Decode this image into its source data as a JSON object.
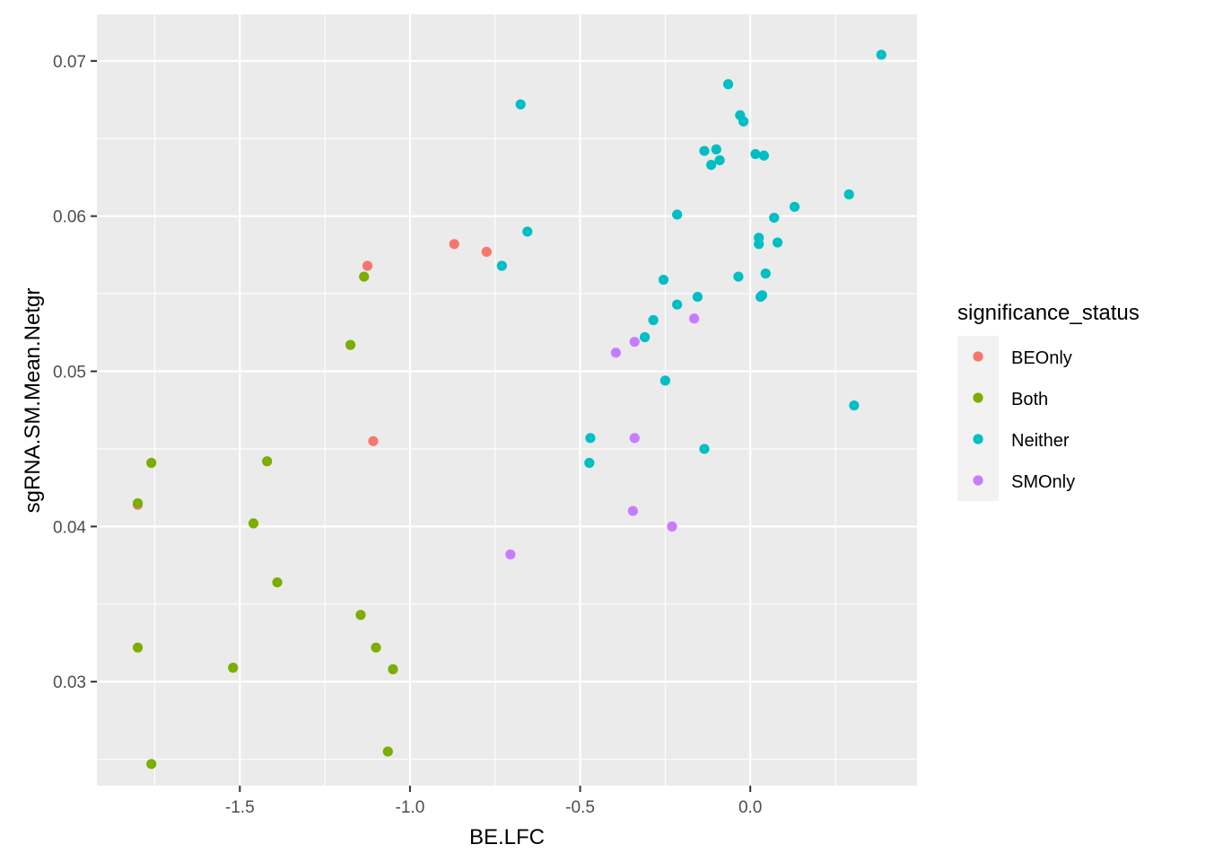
{
  "chart_data": {
    "type": "scatter",
    "title": "",
    "xlabel": "BE.LFC",
    "ylabel": "sgRNA.SM.Mean.Netgr",
    "xlim": [
      -1.92,
      0.49
    ],
    "ylim": [
      0.0233,
      0.073
    ],
    "x_ticks": [
      -1.5,
      -1.0,
      -0.5,
      0.0
    ],
    "x_tick_labels": [
      "-1.5",
      "-1.0",
      "-0.5",
      "0.0"
    ],
    "y_ticks": [
      0.03,
      0.04,
      0.05,
      0.06,
      0.07
    ],
    "y_tick_labels": [
      "0.03",
      "0.04",
      "0.05",
      "0.06",
      "0.07"
    ],
    "grid": true,
    "legend": {
      "title": "significance_status",
      "placement": "right",
      "entries": [
        {
          "label": "BEOnly",
          "color": "#F8766D"
        },
        {
          "label": "Both",
          "color": "#7CAE00"
        },
        {
          "label": "Neither",
          "color": "#00BFC4"
        },
        {
          "label": "SMOnly",
          "color": "#C77CFF"
        }
      ]
    },
    "series": [
      {
        "name": "BEOnly",
        "color": "#F8766D",
        "points": [
          [
            -1.8,
            0.0414
          ],
          [
            -1.125,
            0.0568
          ],
          [
            -1.108,
            0.0455
          ],
          [
            -0.87,
            0.0582
          ],
          [
            -0.775,
            0.0577
          ]
        ]
      },
      {
        "name": "Both",
        "color": "#7CAE00",
        "points": [
          [
            -1.8,
            0.0415
          ],
          [
            -1.76,
            0.0441
          ],
          [
            -1.8,
            0.0322
          ],
          [
            -1.76,
            0.0247
          ],
          [
            -1.52,
            0.0309
          ],
          [
            -1.46,
            0.0402
          ],
          [
            -1.42,
            0.0442
          ],
          [
            -1.39,
            0.0364
          ],
          [
            -1.175,
            0.0517
          ],
          [
            -1.135,
            0.0561
          ],
          [
            -1.145,
            0.0343
          ],
          [
            -1.1,
            0.0322
          ],
          [
            -1.05,
            0.0308
          ],
          [
            -1.065,
            0.0255
          ]
        ]
      },
      {
        "name": "Neither",
        "color": "#00BFC4",
        "points": [
          [
            -0.675,
            0.0672
          ],
          [
            -0.655,
            0.059
          ],
          [
            -0.73,
            0.0568
          ],
          [
            -0.47,
            0.0457
          ],
          [
            -0.473,
            0.0441
          ],
          [
            -0.31,
            0.0522
          ],
          [
            -0.285,
            0.0533
          ],
          [
            -0.255,
            0.0559
          ],
          [
            -0.25,
            0.0494
          ],
          [
            -0.215,
            0.0601
          ],
          [
            -0.215,
            0.0543
          ],
          [
            -0.155,
            0.0548
          ],
          [
            -0.135,
            0.0642
          ],
          [
            -0.135,
            0.045
          ],
          [
            -0.115,
            0.0633
          ],
          [
            -0.1,
            0.0643
          ],
          [
            -0.09,
            0.0636
          ],
          [
            -0.065,
            0.0685
          ],
          [
            -0.035,
            0.0561
          ],
          [
            -0.03,
            0.0665
          ],
          [
            -0.02,
            0.0661
          ],
          [
            0.015,
            0.064
          ],
          [
            0.025,
            0.0586
          ],
          [
            0.025,
            0.0582
          ],
          [
            0.03,
            0.0548
          ],
          [
            0.035,
            0.0549
          ],
          [
            0.04,
            0.0639
          ],
          [
            0.045,
            0.0563
          ],
          [
            0.07,
            0.0599
          ],
          [
            0.08,
            0.0583
          ],
          [
            0.13,
            0.0606
          ],
          [
            0.29,
            0.0614
          ],
          [
            0.305,
            0.0478
          ],
          [
            0.385,
            0.0704
          ]
        ]
      },
      {
        "name": "SMOnly",
        "color": "#C77CFF",
        "points": [
          [
            -0.705,
            0.0382
          ],
          [
            -0.395,
            0.0512
          ],
          [
            -0.34,
            0.0519
          ],
          [
            -0.34,
            0.0457
          ],
          [
            -0.345,
            0.041
          ],
          [
            -0.23,
            0.04
          ],
          [
            -0.165,
            0.0534
          ]
        ]
      }
    ]
  }
}
